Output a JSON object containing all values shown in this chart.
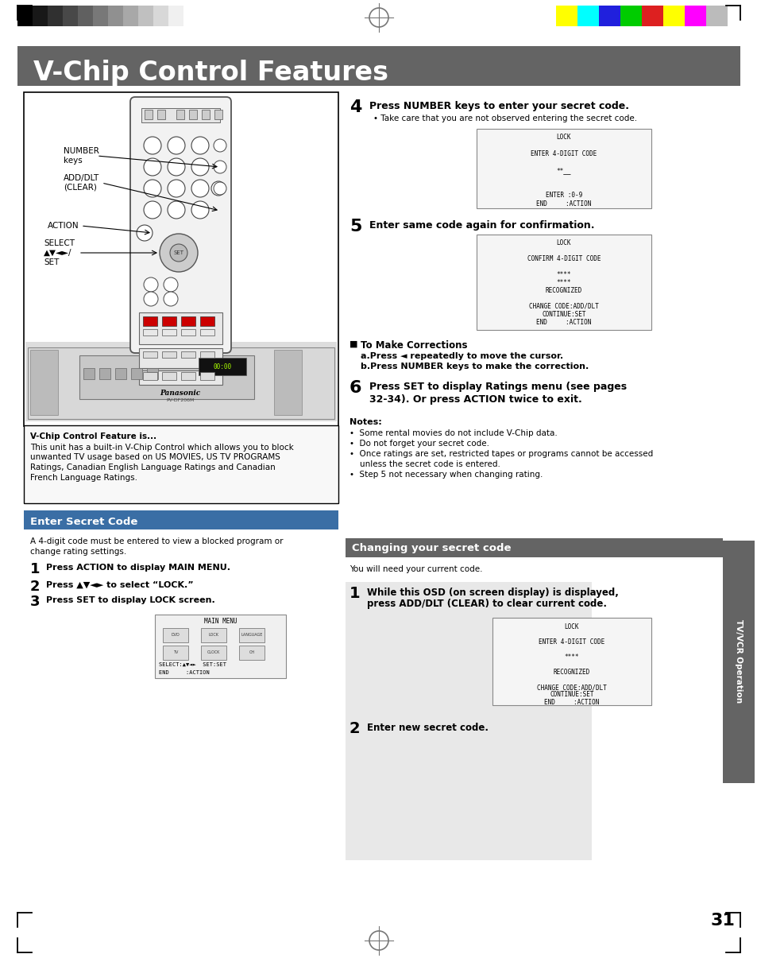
{
  "title": "V-Chip Control Features",
  "title_bg": "#646464",
  "title_color": "#ffffff",
  "page_bg": "#ffffff",
  "section1_title": "Enter Secret Code",
  "section1_bg": "#3a6ea5",
  "section1_color": "#ffffff",
  "section2_title": "Changing your secret code",
  "section2_bg": "#646464",
  "section2_color": "#ffffff",
  "sidebar_title": "TV/VCR Operation",
  "sidebar_bg": "#646464",
  "sidebar_color": "#ffffff",
  "feature_box_title": "V-Chip Control Feature is...",
  "feature_box_lines": [
    "This unit has a built-in V-Chip Control which allows you to block",
    "unwanted TV usage based on US MOVIES, US TV PROGRAMS",
    "Ratings, Canadian English Language Ratings and Canadian",
    "French Language Ratings."
  ],
  "step1_text": "Press ACTION to display MAIN MENU.",
  "step2_text": "Press ▲▼◄► to select “LOCK.”",
  "step3_text": "Press SET to display LOCK screen.",
  "step4_title": "Press NUMBER keys to enter your secret code.",
  "step4_sub": "Take care that you are not observed entering the secret code.",
  "step5_title": "Enter same code again for confirmation.",
  "step6_line1": "Press SET to display Ratings menu (see pages",
  "step6_line2": "32-34). Or press ACTION twice to exit.",
  "corrections_title": "To Make Corrections",
  "corrections_a": "a.Press ◄ repeatedly to move the cursor.",
  "corrections_b": "b.Press NUMBER keys to make the correction.",
  "notes_title": "Notes:",
  "notes": [
    "•  Some rental movies do not include V-Chip data.",
    "•  Do not forget your secret code.",
    "•  Once ratings are set, restricted tapes or programs cannot be accessed",
    "    unless the secret code is entered.",
    "•  Step 5 not necessary when changing rating."
  ],
  "lock1_lines": [
    "LOCK",
    "",
    "ENTER 4-DIGIT CODE",
    "",
    "**__",
    "",
    "",
    "ENTER :0-9",
    "END     :ACTION"
  ],
  "lock2_lines": [
    "LOCK",
    "",
    "CONFIRM 4-DIGIT CODE",
    "",
    "****",
    "****",
    "RECOGNIZED",
    "",
    "CHANGE CODE:ADD/DLT",
    "CONTINUE:SET",
    "END     :ACTION"
  ],
  "lock3_lines": [
    "LOCK",
    "",
    "ENTER 4-DIGIT CODE",
    "",
    "****",
    "",
    "RECOGNIZED",
    "",
    "CHANGE CODE:ADD/DLT",
    "CONTINUE:SET",
    "END     :ACTION"
  ],
  "main_menu_lines": [
    "MAIN MENU",
    "",
    "",
    "",
    "",
    "SELECT:▲▼◄►  SET:SET",
    "END     :ACTION"
  ],
  "change_step1_line1": "While this OSD (on screen display) is displayed,",
  "change_step1_line2": "press ADD/DLT (CLEAR) to clear current code.",
  "change_step2": "Enter new secret code.",
  "page_number": "31",
  "label_number_keys": "NUMBER\nkeys",
  "label_add_dlt": "ADD/DLT\n(CLEAR)",
  "label_action": "ACTION",
  "label_select": "SELECT\n▲▼◄►/\nSET"
}
